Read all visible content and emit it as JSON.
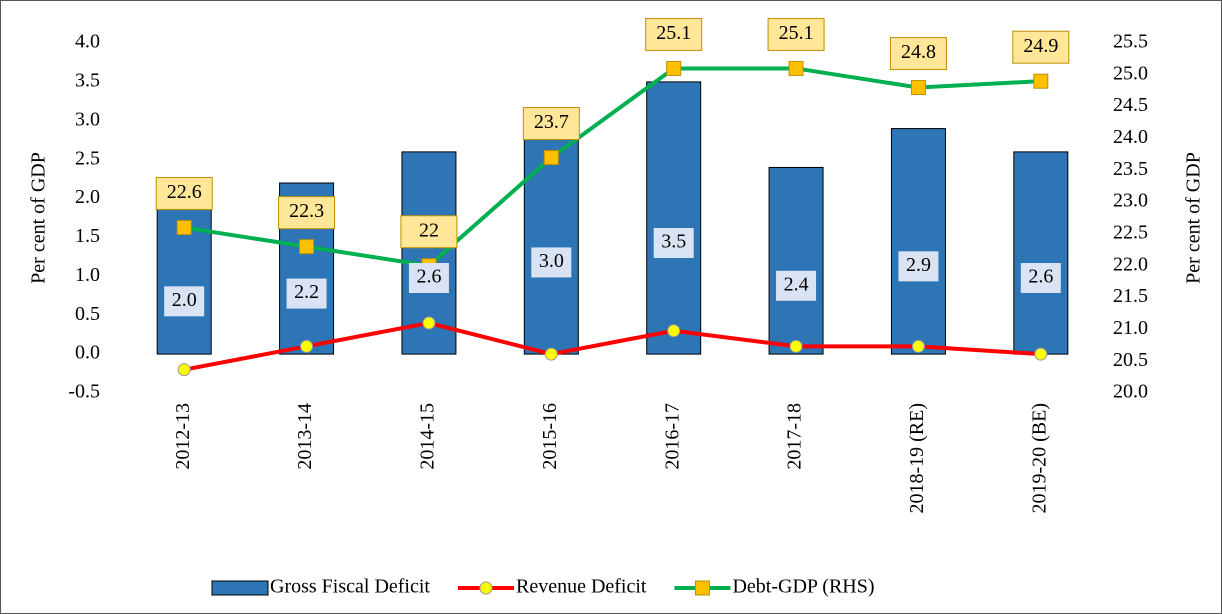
{
  "chart_data": {
    "type": "bar-line",
    "categories": [
      "2012-13",
      "2013-14",
      "2014-15",
      "2015-16",
      "2016-17",
      "2017-18",
      "2018-19 (RE)",
      "2019-20 (BE)"
    ],
    "series": [
      {
        "name": "Gross Fiscal Deficit",
        "type": "bar",
        "color": "#2e75b6",
        "values": [
          2.0,
          2.2,
          2.6,
          3.0,
          3.5,
          2.4,
          2.9,
          2.6
        ],
        "value_labels": [
          "2.0",
          "2.2",
          "2.6",
          "3.0",
          "3.5",
          "2.4",
          "2.9",
          "2.6"
        ]
      },
      {
        "name": "Revenue Deficit",
        "type": "line",
        "color": "#ff0000",
        "marker_color": "#ffff00",
        "values": [
          -0.2,
          0.1,
          0.4,
          0.0,
          0.3,
          0.1,
          0.1,
          0.0
        ]
      },
      {
        "name": "Debt-GDP (RHS)",
        "type": "line",
        "axis": "y2",
        "color": "#00b050",
        "marker_color": "#ffc000",
        "values": [
          22.6,
          22.3,
          22,
          23.7,
          25.1,
          25.1,
          24.8,
          24.9
        ]
      }
    ],
    "ylabel": "Per cent of GDP",
    "y2label": "Per cent of GDP",
    "ylim": [
      -0.5,
      4.0
    ],
    "yticks": [
      -0.5,
      {
        "value": 0,
        "label": "0.0"
      },
      0.5,
      {
        "value": 1,
        "label": "1.0"
      },
      1.5,
      {
        "value": 2,
        "label": "2.0"
      },
      2.5,
      {
        "value": 3,
        "label": "3.0"
      },
      3.5,
      {
        "value": 4,
        "label": "4.0"
      }
    ],
    "y2lim": [
      20.0,
      25.5
    ],
    "y2ticks": [
      {
        "value": 20,
        "label": "20.0"
      },
      20.5,
      {
        "value": 21,
        "label": "21.0"
      },
      21.5,
      {
        "value": 22,
        "label": "22.0"
      },
      22.5,
      {
        "value": 23,
        "label": "23.0"
      },
      23.5,
      {
        "value": 24,
        "label": "24.0"
      },
      24.5,
      {
        "value": 25,
        "label": "25.0"
      },
      25.5
    ],
    "grid": false,
    "legend": "bottom"
  }
}
